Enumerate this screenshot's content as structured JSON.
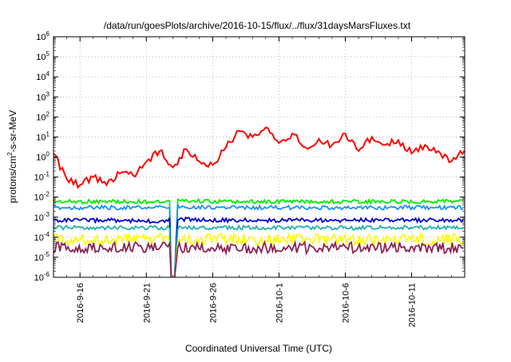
{
  "chart_data": {
    "type": "line",
    "title": "/data/run/goesPlots/archive/2016-10-15/flux/../flux/31daysMarsFluxes.txt",
    "xlabel": "Coordinated Universal Time (UTC)",
    "ylabel": {
      "base": "protons/cm",
      "sup": "2",
      "rest": "-s-sr-MeV"
    },
    "yscale": "log",
    "ylim": [
      1e-06,
      1000000.0
    ],
    "xlim": [
      "2016-09-14",
      "2016-10-15"
    ],
    "y_ticks": [
      {
        "value": 1e-06,
        "base": "10",
        "exp": "-6"
      },
      {
        "value": 1e-05,
        "base": "10",
        "exp": "-5"
      },
      {
        "value": 0.0001,
        "base": "10",
        "exp": "-4"
      },
      {
        "value": 0.001,
        "base": "10",
        "exp": "-3"
      },
      {
        "value": 0.01,
        "base": "10",
        "exp": "-2"
      },
      {
        "value": 0.1,
        "base": "10",
        "exp": "-1"
      },
      {
        "value": 1,
        "base": "10",
        "exp": "0"
      },
      {
        "value": 10.0,
        "base": "10",
        "exp": "1"
      },
      {
        "value": 100.0,
        "base": "10",
        "exp": "2"
      },
      {
        "value": 1000.0,
        "base": "10",
        "exp": "3"
      },
      {
        "value": 10000.0,
        "base": "10",
        "exp": "4"
      },
      {
        "value": 100000.0,
        "base": "10",
        "exp": "5"
      },
      {
        "value": 1000000.0,
        "base": "10",
        "exp": "6"
      }
    ],
    "x_ticks": [
      {
        "date": "2016-09-16",
        "label": "2016-9-16"
      },
      {
        "date": "2016-09-21",
        "label": "2016-9-21"
      },
      {
        "date": "2016-09-26",
        "label": "2016-9-26"
      },
      {
        "date": "2016-10-01",
        "label": "2016-10-1"
      },
      {
        "date": "2016-10-06",
        "label": "2016-10-6"
      },
      {
        "date": "2016-10-11",
        "label": "2016-10-11"
      }
    ],
    "grid": true,
    "legend": "none",
    "gap": {
      "drop": "2016-09-22T18:00",
      "recover": "2016-09-23T06:00"
    },
    "series": [
      {
        "color": "#ff0000",
        "x": [
          "2016-09-14",
          "2016-09-15",
          "2016-09-16",
          "2016-09-17",
          "2016-09-18",
          "2016-09-19",
          "2016-09-20",
          "2016-09-21",
          "2016-09-22",
          "2016-09-23",
          "2016-09-24",
          "2016-09-25",
          "2016-09-26",
          "2016-09-27",
          "2016-09-28",
          "2016-09-29",
          "2016-09-30",
          "2016-10-01",
          "2016-10-02",
          "2016-10-03",
          "2016-10-04",
          "2016-10-05",
          "2016-10-06",
          "2016-10-07",
          "2016-10-08",
          "2016-10-09",
          "2016-10-10",
          "2016-10-11",
          "2016-10-12",
          "2016-10-13",
          "2016-10-14",
          "2016-10-15"
        ],
        "values": [
          1.5,
          0.08,
          0.04,
          0.1,
          0.04,
          0.15,
          0.12,
          0.6,
          2.0,
          0.3,
          2.5,
          0.6,
          0.4,
          3.0,
          20,
          10,
          30,
          5,
          15,
          3,
          8,
          4,
          15,
          2,
          10,
          4,
          7,
          1.5,
          4,
          2,
          0.6,
          2.0
        ]
      },
      {
        "color": "#00ee00",
        "x": [
          "2016-09-14",
          "2016-09-18",
          "2016-09-22",
          "2016-09-23",
          "2016-09-27",
          "2016-10-01",
          "2016-10-05",
          "2016-10-09",
          "2016-10-13",
          "2016-10-15"
        ],
        "values": [
          0.006,
          0.006,
          0.006,
          0.007,
          0.006,
          0.006,
          0.006,
          0.006,
          0.006,
          0.006
        ]
      },
      {
        "color": "#1e90ff",
        "x": [
          "2016-09-14",
          "2016-09-18",
          "2016-09-22",
          "2016-09-23",
          "2016-09-27",
          "2016-10-01",
          "2016-10-05",
          "2016-10-09",
          "2016-10-13",
          "2016-10-15"
        ],
        "values": [
          0.003,
          0.003,
          0.003,
          0.0035,
          0.003,
          0.003,
          0.003,
          0.003,
          0.003,
          0.003
        ]
      },
      {
        "color": "#0000cd",
        "x": [
          "2016-09-14",
          "2016-09-18",
          "2016-09-22",
          "2016-09-23",
          "2016-09-27",
          "2016-10-01",
          "2016-10-05",
          "2016-10-09",
          "2016-10-13",
          "2016-10-15"
        ],
        "values": [
          0.0007,
          0.0007,
          0.0006,
          0.0008,
          0.0007,
          0.0007,
          0.0007,
          0.0007,
          0.0007,
          0.0007
        ]
      },
      {
        "color": "#20b2aa",
        "x": [
          "2016-09-14",
          "2016-09-18",
          "2016-09-22",
          "2016-09-23",
          "2016-09-27",
          "2016-10-01",
          "2016-10-05",
          "2016-10-09",
          "2016-10-13",
          "2016-10-15"
        ],
        "values": [
          0.0003,
          0.0003,
          0.0003,
          0.0003,
          0.0003,
          0.0003,
          0.0003,
          0.0003,
          0.0003,
          0.0003
        ]
      },
      {
        "color": "#ffff00",
        "x": [
          "2016-09-14",
          "2016-09-18",
          "2016-09-22",
          "2016-09-23",
          "2016-09-27",
          "2016-10-01",
          "2016-10-05",
          "2016-10-09",
          "2016-10-13",
          "2016-10-15"
        ],
        "values": [
          8e-05,
          8e-05,
          8e-05,
          8e-05,
          8e-05,
          8e-05,
          8e-05,
          8e-05,
          8e-05,
          8e-05
        ]
      },
      {
        "color": "#8b2252",
        "x": [
          "2016-09-14",
          "2016-09-18",
          "2016-09-22",
          "2016-09-23",
          "2016-09-27",
          "2016-10-01",
          "2016-10-05",
          "2016-10-09",
          "2016-10-13",
          "2016-10-15"
        ],
        "values": [
          3e-05,
          3e-05,
          3e-05,
          3e-05,
          3e-05,
          3e-05,
          3e-05,
          3e-05,
          3e-05,
          3e-05
        ]
      }
    ]
  }
}
